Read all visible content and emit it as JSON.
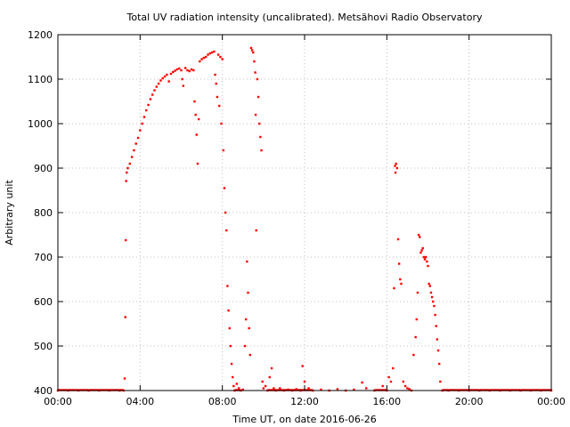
{
  "chart_data": {
    "type": "scatter",
    "title": "Total UV radiation intensity (uncalibrated). Metsähovi Radio Observatory",
    "xlabel": "Time UT, on date 2016-06-26",
    "ylabel": "Arbitrary unit",
    "xlim": [
      0,
      24
    ],
    "ylim": [
      400,
      1200
    ],
    "x_ticks": [
      {
        "v": 0,
        "label": "00:00"
      },
      {
        "v": 4,
        "label": "04:00"
      },
      {
        "v": 8,
        "label": "08:00"
      },
      {
        "v": 12,
        "label": "12:00"
      },
      {
        "v": 16,
        "label": "16:00"
      },
      {
        "v": 20,
        "label": "20:00"
      },
      {
        "v": 24,
        "label": "00:00"
      }
    ],
    "y_ticks": [
      400,
      500,
      600,
      700,
      800,
      900,
      1000,
      1100,
      1200
    ],
    "grid": true,
    "marker_color": "#ff0000",
    "series": [
      {
        "points": [
          [
            0.0,
            400
          ],
          [
            0.5,
            400
          ],
          [
            1.0,
            400
          ],
          [
            1.5,
            400
          ],
          [
            2.0,
            400
          ],
          [
            2.5,
            400
          ],
          [
            3.0,
            400
          ],
          [
            3.2,
            400
          ],
          [
            3.25,
            427
          ],
          [
            3.28,
            565
          ],
          [
            3.3,
            738
          ],
          [
            3.32,
            871
          ],
          [
            3.35,
            890
          ],
          [
            3.4,
            900
          ],
          [
            3.5,
            910
          ],
          [
            3.6,
            925
          ],
          [
            3.7,
            940
          ],
          [
            3.8,
            955
          ],
          [
            3.9,
            968
          ],
          [
            4.0,
            985
          ],
          [
            4.1,
            1000
          ],
          [
            4.2,
            1015
          ],
          [
            4.3,
            1030
          ],
          [
            4.4,
            1042
          ],
          [
            4.5,
            1055
          ],
          [
            4.6,
            1065
          ],
          [
            4.7,
            1075
          ],
          [
            4.8,
            1083
          ],
          [
            4.9,
            1090
          ],
          [
            5.0,
            1097
          ],
          [
            5.1,
            1102
          ],
          [
            5.2,
            1106
          ],
          [
            5.3,
            1110
          ],
          [
            5.4,
            1095
          ],
          [
            5.5,
            1112
          ],
          [
            5.6,
            1116
          ],
          [
            5.7,
            1119
          ],
          [
            5.8,
            1122
          ],
          [
            5.9,
            1124
          ],
          [
            6.0,
            1120
          ],
          [
            6.05,
            1100
          ],
          [
            6.1,
            1085
          ],
          [
            6.2,
            1125
          ],
          [
            6.3,
            1120
          ],
          [
            6.4,
            1118
          ],
          [
            6.5,
            1122
          ],
          [
            6.6,
            1120
          ],
          [
            6.65,
            1050
          ],
          [
            6.7,
            1020
          ],
          [
            6.75,
            975
          ],
          [
            6.8,
            910
          ],
          [
            6.85,
            1010
          ],
          [
            6.9,
            1140
          ],
          [
            7.0,
            1145
          ],
          [
            7.1,
            1148
          ],
          [
            7.2,
            1150
          ],
          [
            7.3,
            1155
          ],
          [
            7.4,
            1158
          ],
          [
            7.5,
            1160
          ],
          [
            7.6,
            1162
          ],
          [
            7.65,
            1110
          ],
          [
            7.7,
            1090
          ],
          [
            7.75,
            1060
          ],
          [
            7.8,
            1155
          ],
          [
            7.85,
            1040
          ],
          [
            7.9,
            1150
          ],
          [
            7.95,
            1000
          ],
          [
            8.0,
            1145
          ],
          [
            8.05,
            940
          ],
          [
            8.1,
            855
          ],
          [
            8.15,
            800
          ],
          [
            8.2,
            760
          ],
          [
            8.25,
            635
          ],
          [
            8.3,
            580
          ],
          [
            8.35,
            540
          ],
          [
            8.4,
            500
          ],
          [
            8.45,
            460
          ],
          [
            8.5,
            430
          ],
          [
            8.55,
            410
          ],
          [
            8.6,
            400
          ],
          [
            8.7,
            415
          ],
          [
            8.8,
            405
          ],
          [
            8.9,
            400
          ],
          [
            9.0,
            402
          ],
          [
            9.1,
            500
          ],
          [
            9.15,
            560
          ],
          [
            9.2,
            690
          ],
          [
            9.25,
            620
          ],
          [
            9.3,
            540
          ],
          [
            9.35,
            480
          ],
          [
            9.4,
            1170
          ],
          [
            9.45,
            1165
          ],
          [
            9.5,
            1160
          ],
          [
            9.55,
            1140
          ],
          [
            9.6,
            1115
          ],
          [
            9.62,
            1020
          ],
          [
            9.65,
            760
          ],
          [
            9.7,
            1100
          ],
          [
            9.75,
            1060
          ],
          [
            9.8,
            1000
          ],
          [
            9.85,
            970
          ],
          [
            9.9,
            940
          ],
          [
            9.95,
            420
          ],
          [
            10.0,
            405
          ],
          [
            10.1,
            410
          ],
          [
            10.2,
            400
          ],
          [
            10.3,
            430
          ],
          [
            10.4,
            450
          ],
          [
            10.5,
            405
          ],
          [
            10.6,
            400
          ],
          [
            10.8,
            405
          ],
          [
            11.0,
            400
          ],
          [
            11.2,
            402
          ],
          [
            11.4,
            400
          ],
          [
            11.6,
            403
          ],
          [
            11.8,
            400
          ],
          [
            11.9,
            455
          ],
          [
            12.0,
            420
          ],
          [
            12.2,
            405
          ],
          [
            12.4,
            400
          ],
          [
            12.8,
            402
          ],
          [
            13.2,
            400
          ],
          [
            13.6,
            403
          ],
          [
            14.0,
            400
          ],
          [
            14.4,
            402
          ],
          [
            14.8,
            418
          ],
          [
            15.0,
            405
          ],
          [
            15.4,
            400
          ],
          [
            15.8,
            410
          ],
          [
            16.0,
            400
          ],
          [
            16.1,
            430
          ],
          [
            16.2,
            420
          ],
          [
            16.3,
            450
          ],
          [
            16.35,
            630
          ],
          [
            16.4,
            905
          ],
          [
            16.42,
            890
          ],
          [
            16.45,
            910
          ],
          [
            16.5,
            900
          ],
          [
            16.55,
            740
          ],
          [
            16.6,
            685
          ],
          [
            16.65,
            650
          ],
          [
            16.7,
            640
          ],
          [
            16.8,
            420
          ],
          [
            16.9,
            410
          ],
          [
            17.0,
            405
          ],
          [
            17.1,
            403
          ],
          [
            17.2,
            400
          ],
          [
            17.3,
            480
          ],
          [
            17.4,
            520
          ],
          [
            17.45,
            560
          ],
          [
            17.5,
            620
          ],
          [
            17.55,
            750
          ],
          [
            17.6,
            745
          ],
          [
            17.65,
            710
          ],
          [
            17.7,
            715
          ],
          [
            17.75,
            720
          ],
          [
            17.8,
            700
          ],
          [
            17.85,
            695
          ],
          [
            17.9,
            700
          ],
          [
            17.95,
            690
          ],
          [
            18.0,
            680
          ],
          [
            18.05,
            640
          ],
          [
            18.1,
            635
          ],
          [
            18.15,
            620
          ],
          [
            18.2,
            610
          ],
          [
            18.25,
            600
          ],
          [
            18.3,
            590
          ],
          [
            18.35,
            570
          ],
          [
            18.4,
            545
          ],
          [
            18.45,
            515
          ],
          [
            18.5,
            490
          ],
          [
            18.55,
            460
          ],
          [
            18.6,
            420
          ],
          [
            18.7,
            400
          ],
          [
            19.0,
            400
          ],
          [
            19.5,
            400
          ],
          [
            20.0,
            400
          ],
          [
            20.5,
            400
          ],
          [
            21.0,
            400
          ],
          [
            21.5,
            400
          ],
          [
            22.0,
            400
          ],
          [
            22.5,
            400
          ],
          [
            23.0,
            400
          ],
          [
            23.5,
            400
          ],
          [
            24.0,
            400
          ]
        ]
      }
    ]
  }
}
